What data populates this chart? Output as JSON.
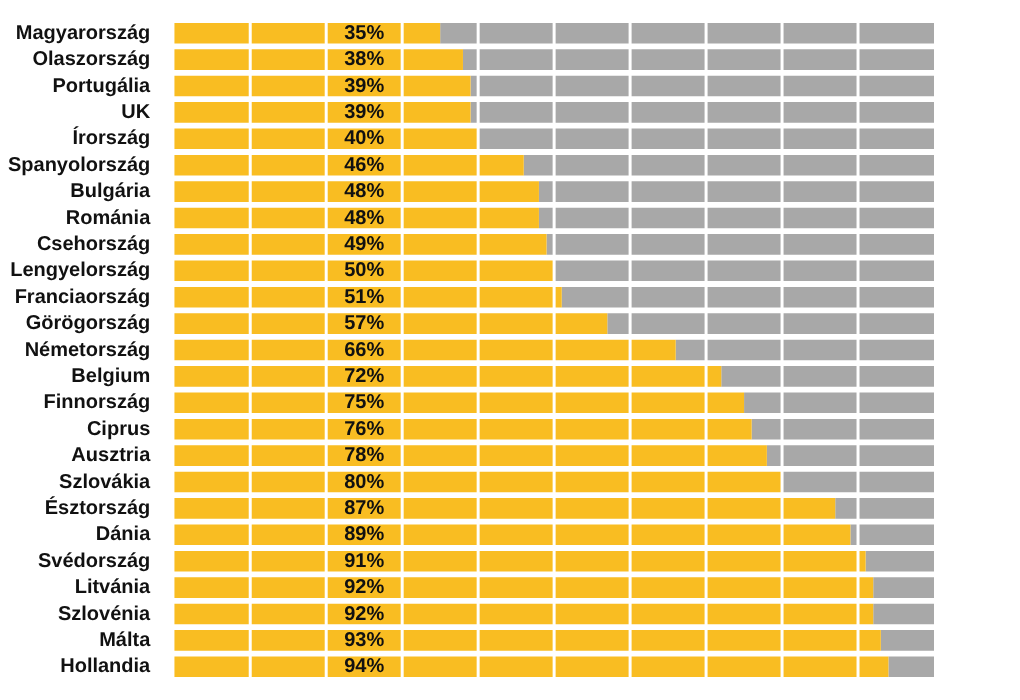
{
  "chart_data": {
    "type": "bar",
    "orientation": "horizontal",
    "stacked": true,
    "categories": [
      "Magyarország",
      "Olaszország",
      "Portugália",
      "UK",
      "Írország",
      "Spanyolország",
      "Bulgária",
      "Románia",
      "Csehország",
      "Lengyelország",
      "Franciaország",
      "Görögország",
      "Németország",
      "Belgium",
      "Finnország",
      "Ciprus",
      "Ausztria",
      "Szlovákia",
      "Észtország",
      "Dánia",
      "Svédország",
      "Litvánia",
      "Szlovénia",
      "Málta",
      "Hollandia"
    ],
    "series": [
      {
        "color": "#f9bd22",
        "values": [
          35,
          38,
          39,
          39,
          40,
          46,
          48,
          48,
          49,
          50,
          51,
          57,
          66,
          72,
          75,
          76,
          78,
          80,
          87,
          89,
          91,
          92,
          92,
          93,
          94
        ],
        "value_labels": [
          "35%",
          "38%",
          "39%",
          "39%",
          "40%",
          "46%",
          "48%",
          "48%",
          "49%",
          "50%",
          "51%",
          "57%",
          "66%",
          "72%",
          "75%",
          "76%",
          "78%",
          "80%",
          "87%",
          "89%",
          "91%",
          "92%",
          "92%",
          "93%",
          "94%"
        ]
      },
      {
        "color": "#a8a8a8",
        "values": [
          65,
          62,
          61,
          61,
          60,
          54,
          52,
          52,
          51,
          50,
          49,
          43,
          34,
          28,
          25,
          24,
          22,
          20,
          13,
          11,
          9,
          8,
          8,
          7,
          6
        ]
      }
    ],
    "xlim": [
      0,
      100
    ],
    "xticks": [
      {
        "value": 10,
        "label": null
      },
      {
        "value": 20,
        "label": null
      },
      {
        "value": 30,
        "label": null
      },
      {
        "value": 40,
        "label": null
      },
      {
        "value": 50,
        "label": null
      },
      {
        "value": 60,
        "label": null
      },
      {
        "value": 70,
        "label": null
      },
      {
        "value": 80,
        "label": null
      },
      {
        "value": 90,
        "label": null
      }
    ],
    "grid": "x",
    "tick_labels": "y",
    "legend": false
  }
}
